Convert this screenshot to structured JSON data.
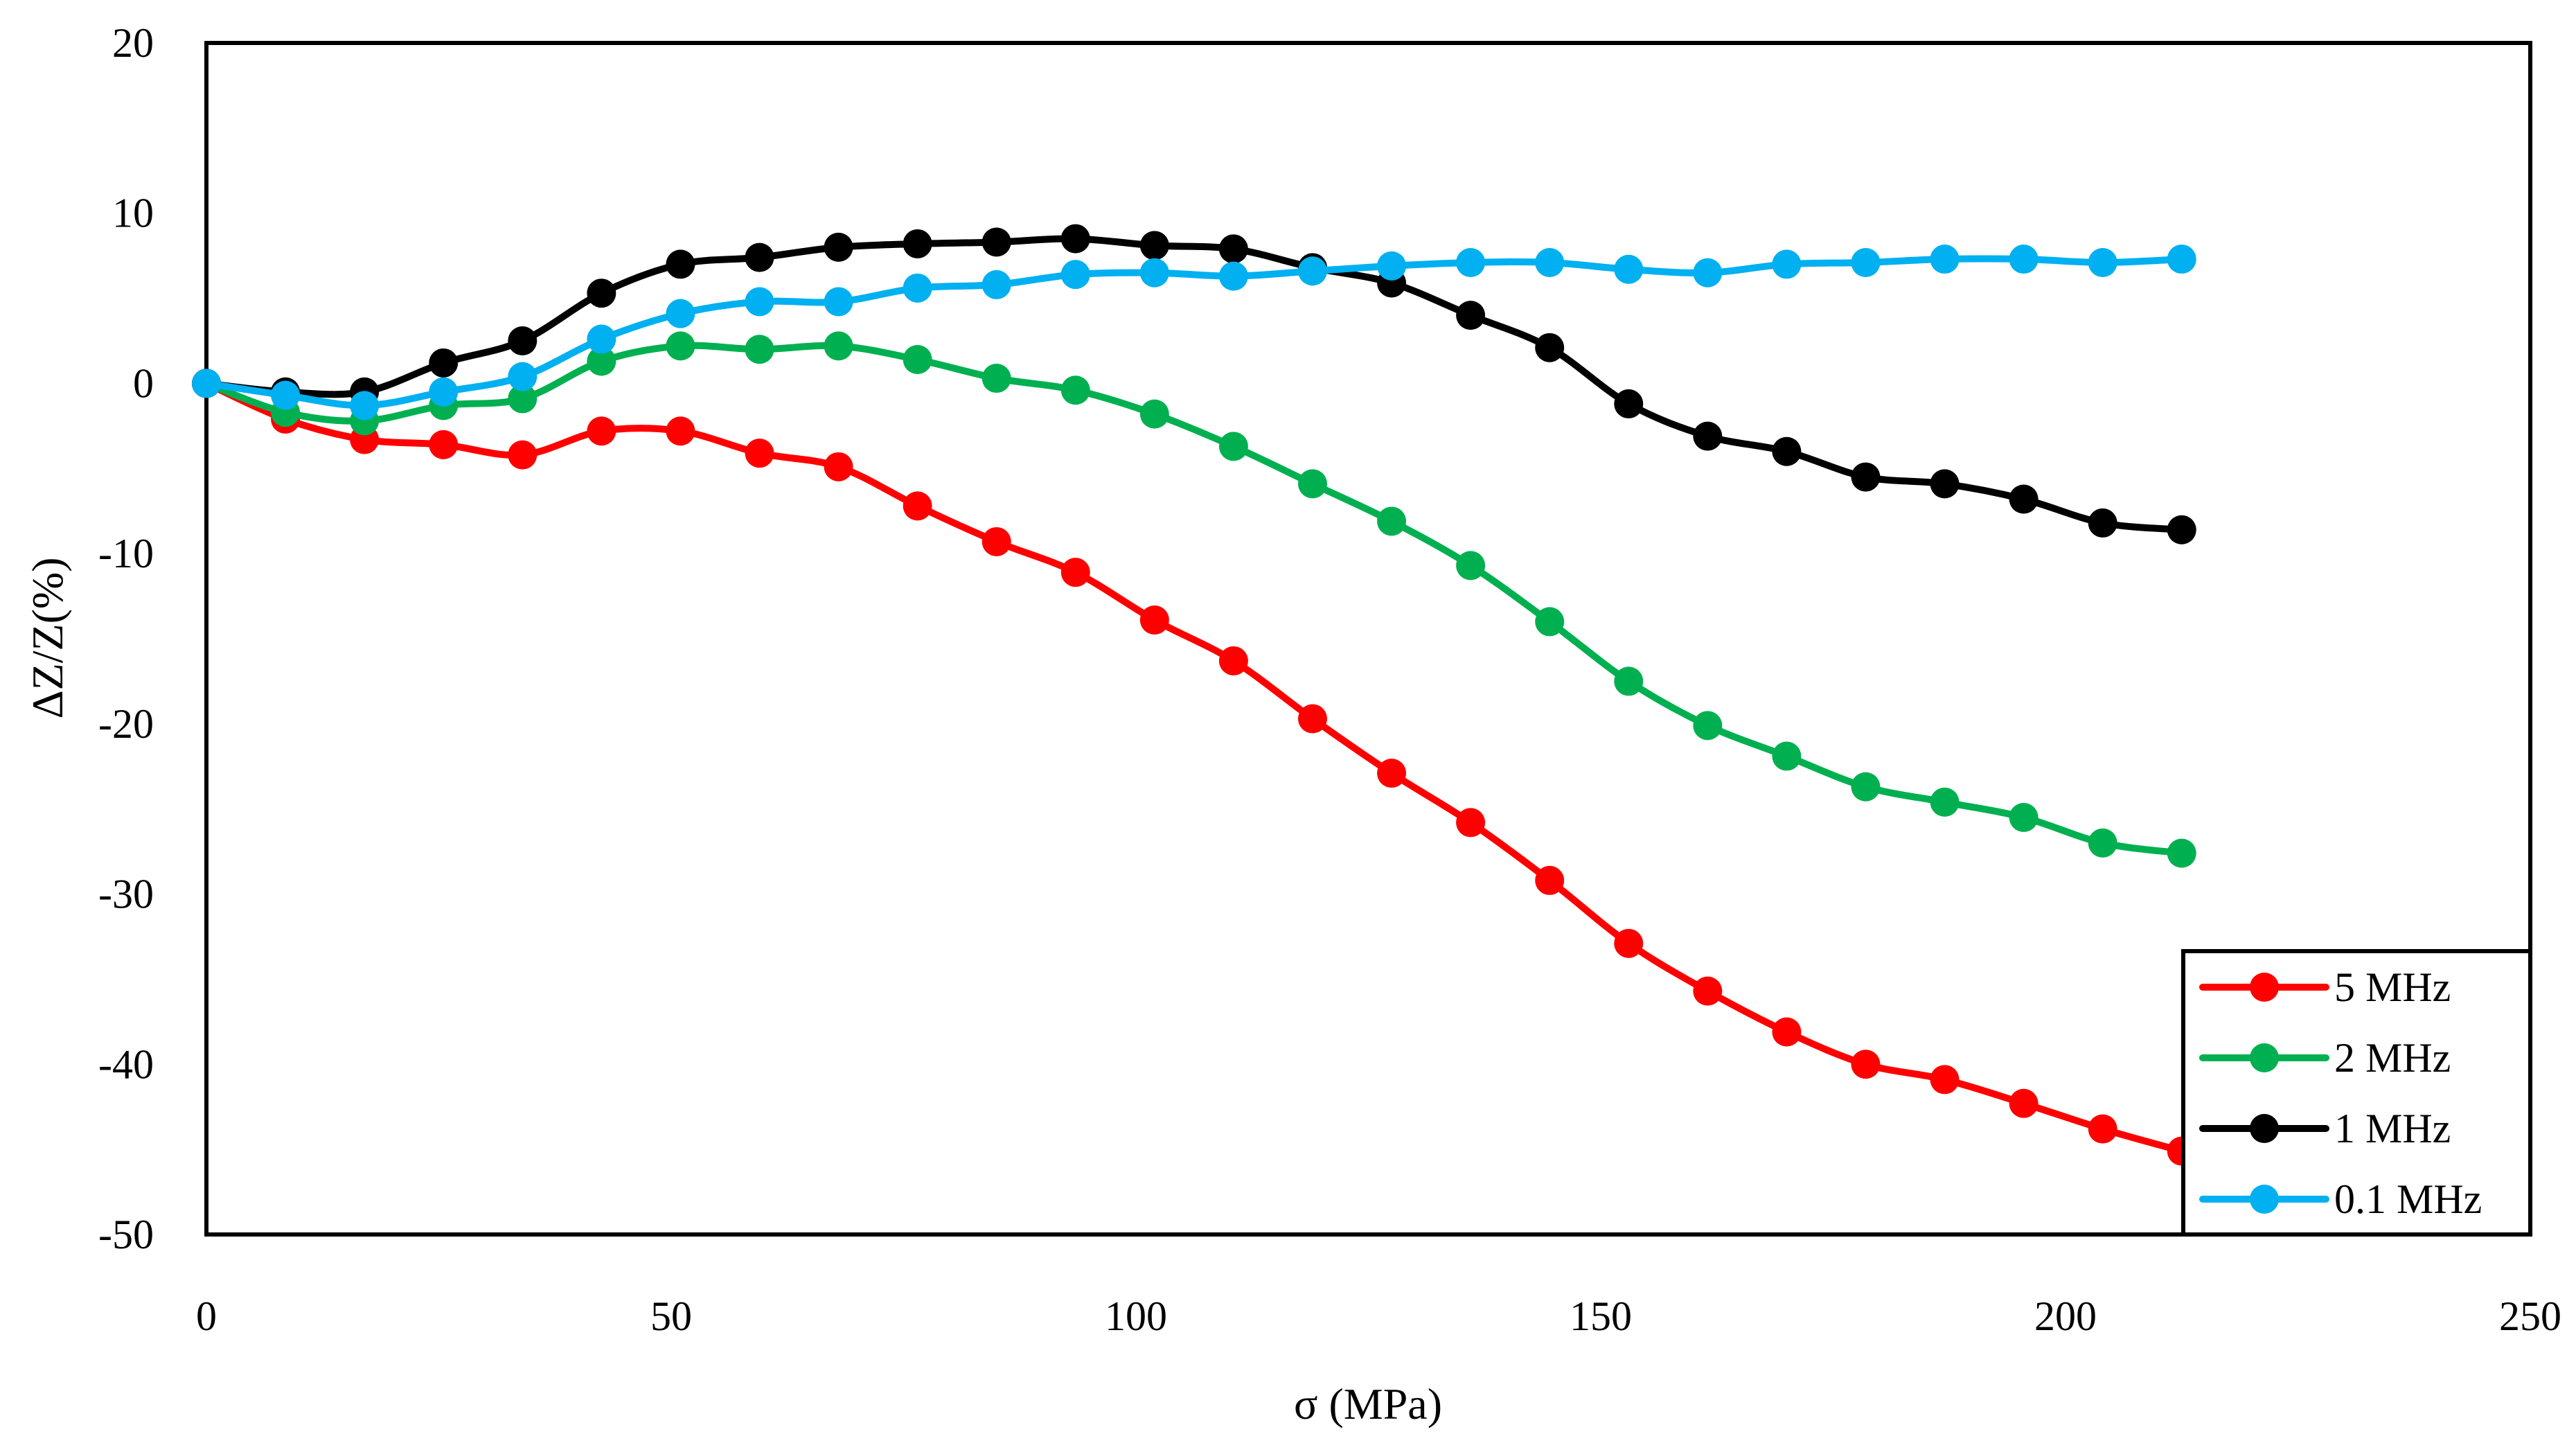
{
  "chart_data": {
    "type": "line",
    "title": "",
    "xlabel": "σ (MPa)",
    "ylabel": "ΔZ/Z(%)",
    "xlim": [
      0,
      250
    ],
    "ylim": [
      -50,
      20
    ],
    "xticks": [
      0,
      50,
      100,
      150,
      200,
      250
    ],
    "yticks": [
      20,
      10,
      0,
      -10,
      -20,
      -30,
      -40,
      -50
    ],
    "x": [
      0,
      8.5,
      17,
      25.5,
      34,
      42.5,
      51,
      59.5,
      68,
      76.5,
      85,
      93.5,
      102,
      110.5,
      119,
      127.5,
      136,
      144.5,
      153,
      161.5,
      170,
      178.5,
      187,
      195.5,
      204,
      212.5
    ],
    "legend_position": "bottom-right",
    "grid": false,
    "series": [
      {
        "name": "5 MHz",
        "color": "#ff0000",
        "values": [
          0,
          -2.1,
          -3.3,
          -3.6,
          -4.2,
          -2.8,
          -2.8,
          -4.1,
          -4.9,
          -7.2,
          -9.3,
          -11.1,
          -13.9,
          -16.3,
          -19.7,
          -22.9,
          -25.8,
          -29.2,
          -32.9,
          -35.7,
          -38.1,
          -40.0,
          -40.9,
          -42.3,
          -43.8,
          -45.1
        ]
      },
      {
        "name": "2 MHz",
        "color": "#00b050",
        "values": [
          0,
          -1.7,
          -2.2,
          -1.3,
          -0.9,
          1.3,
          2.2,
          2.0,
          2.2,
          1.4,
          0.3,
          -0.4,
          -1.8,
          -3.7,
          -5.9,
          -8.1,
          -10.7,
          -14.0,
          -17.5,
          -20.1,
          -21.9,
          -23.7,
          -24.6,
          -25.5,
          -27.0,
          -27.6
        ]
      },
      {
        "name": "1 MHz",
        "color": "#000000",
        "values": [
          0,
          -0.5,
          -0.5,
          1.2,
          2.5,
          5.3,
          7.0,
          7.4,
          8.0,
          8.2,
          8.3,
          8.5,
          8.1,
          7.9,
          6.8,
          5.9,
          4.0,
          2.1,
          -1.2,
          -3.1,
          -4.0,
          -5.5,
          -5.9,
          -6.8,
          -8.2,
          -8.6
        ]
      },
      {
        "name": "0.1 MHz",
        "color": "#00b0f0",
        "values": [
          0,
          -0.7,
          -1.3,
          -0.5,
          0.4,
          2.6,
          4.1,
          4.8,
          4.8,
          5.6,
          5.8,
          6.4,
          6.5,
          6.3,
          6.6,
          6.9,
          7.1,
          7.1,
          6.7,
          6.5,
          7.0,
          7.1,
          7.3,
          7.3,
          7.1,
          7.3
        ]
      }
    ]
  }
}
